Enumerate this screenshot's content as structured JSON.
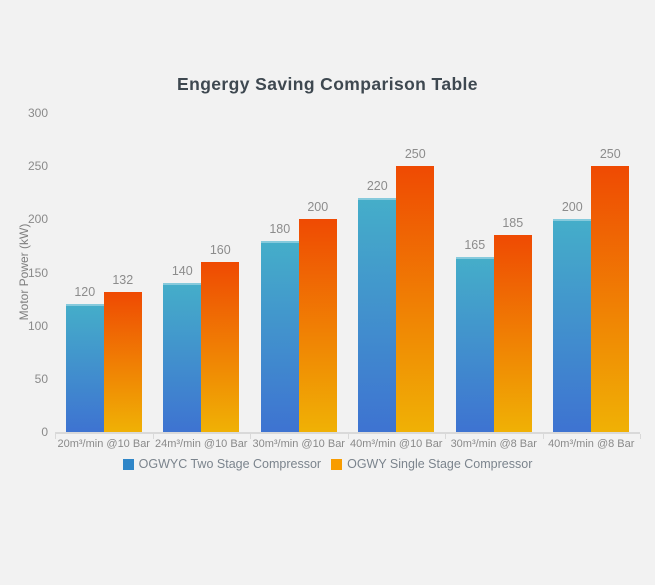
{
  "title": "Engergy Saving Comparison Table",
  "chart_data": {
    "type": "bar",
    "title": "Engergy Saving Comparison Table",
    "xlabel": "",
    "ylabel": "Motor Power (kW)",
    "ylim": [
      0,
      300
    ],
    "yticks": [
      0,
      50,
      100,
      150,
      200,
      250,
      300
    ],
    "grid": false,
    "legend_position": "bottom",
    "categories": [
      "20m³/min @10 Bar",
      "24m³/min @10 Bar",
      "30m³/min @10 Bar",
      "40m³/min @10 Bar",
      "30m³/min @8 Bar",
      "40m³/min @8 Bar"
    ],
    "series": [
      {
        "name": "OGWYC Two Stage Compressor",
        "values": [
          120,
          140,
          180,
          220,
          165,
          200
        ],
        "gradient_top": "#45aec9",
        "gradient_bottom": "#3e73d1",
        "legend_color": "#2f86c8"
      },
      {
        "name": "OGWY Single Stage Compressor",
        "values": [
          132,
          160,
          200,
          250,
          185,
          250
        ],
        "gradient_top": "#ef4a03",
        "gradient_bottom": "#f0b105",
        "legend_color": "#f89c00"
      }
    ]
  },
  "colors": {
    "background": "#f2f2f2",
    "axis_line": "#d9d9d9",
    "title_text": "#3e4850",
    "tick_text": "#8a8a8a",
    "data_label_text": "#8c8c8c",
    "legend_text": "#7b848d"
  }
}
